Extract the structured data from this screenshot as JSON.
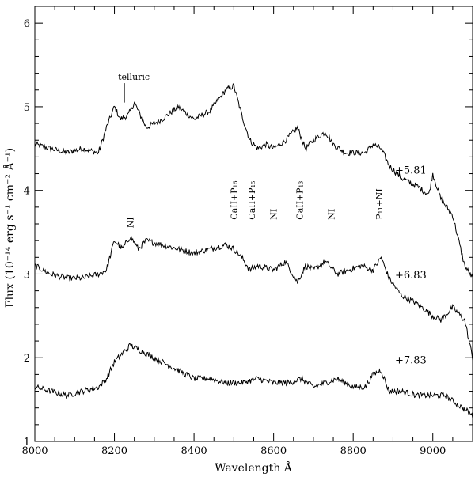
{
  "chart_data": {
    "type": "line",
    "xlabel": "Wavelength Å",
    "ylabel": "Flux (10⁻¹⁴ erg s⁻¹ cm⁻² Å⁻¹)",
    "xlim": [
      8000,
      9100
    ],
    "ylim": [
      1,
      6.2
    ],
    "x_ticks": [
      8000,
      8200,
      8400,
      8600,
      8800,
      9000
    ],
    "y_ticks": [
      1,
      2,
      3,
      4,
      5,
      6
    ],
    "series": [
      {
        "name": "+5.81",
        "label_at": [
          8905,
          4.2
        ],
        "x": [
          8000,
          8040,
          8080,
          8120,
          8160,
          8180,
          8200,
          8215,
          8235,
          8250,
          8280,
          8320,
          8360,
          8400,
          8440,
          8480,
          8500,
          8520,
          8540,
          8560,
          8580,
          8600,
          8630,
          8660,
          8680,
          8700,
          8730,
          8750,
          8780,
          8800,
          8830,
          8850,
          8870,
          8890,
          8920,
          8960,
          8990,
          9000,
          9020,
          9050,
          9080,
          9100
        ],
        "y": [
          4.55,
          4.5,
          4.45,
          4.5,
          4.45,
          4.75,
          5.0,
          4.85,
          4.9,
          5.05,
          4.75,
          4.85,
          5.0,
          4.85,
          4.95,
          5.2,
          5.25,
          4.9,
          4.6,
          4.5,
          4.55,
          4.5,
          4.6,
          4.75,
          4.5,
          4.6,
          4.7,
          4.55,
          4.45,
          4.45,
          4.45,
          4.55,
          4.5,
          4.3,
          4.15,
          4.05,
          3.95,
          4.2,
          3.9,
          3.7,
          3.1,
          2.95
        ]
      },
      {
        "name": "+6.83",
        "label_at": [
          8905,
          2.95
        ],
        "x": [
          8000,
          8040,
          8080,
          8120,
          8160,
          8180,
          8200,
          8220,
          8240,
          8260,
          8280,
          8320,
          8360,
          8400,
          8440,
          8480,
          8500,
          8520,
          8540,
          8560,
          8600,
          8630,
          8660,
          8680,
          8700,
          8730,
          8760,
          8790,
          8820,
          8850,
          8870,
          8890,
          8920,
          8960,
          9000,
          9020,
          9050,
          9080,
          9100
        ],
        "y": [
          3.1,
          3.0,
          2.95,
          2.95,
          3.0,
          3.05,
          3.4,
          3.3,
          3.45,
          3.3,
          3.4,
          3.35,
          3.3,
          3.25,
          3.3,
          3.35,
          3.3,
          3.2,
          3.05,
          3.1,
          3.05,
          3.15,
          2.9,
          3.1,
          3.05,
          3.15,
          3.0,
          3.05,
          3.1,
          3.05,
          3.2,
          2.95,
          2.75,
          2.65,
          2.5,
          2.45,
          2.6,
          2.45,
          2.0
        ]
      },
      {
        "name": "+7.83",
        "label_at": [
          8905,
          1.93
        ],
        "x": [
          8000,
          8040,
          8080,
          8120,
          8160,
          8180,
          8200,
          8220,
          8240,
          8260,
          8280,
          8320,
          8360,
          8400,
          8440,
          8480,
          8520,
          8560,
          8600,
          8640,
          8670,
          8700,
          8730,
          8760,
          8800,
          8830,
          8850,
          8870,
          8890,
          8920,
          8960,
          9000,
          9030,
          9060,
          9090,
          9100
        ],
        "y": [
          1.65,
          1.6,
          1.55,
          1.6,
          1.65,
          1.75,
          1.95,
          2.05,
          2.15,
          2.1,
          2.05,
          1.95,
          1.85,
          1.75,
          1.75,
          1.7,
          1.7,
          1.75,
          1.7,
          1.7,
          1.75,
          1.65,
          1.7,
          1.75,
          1.65,
          1.65,
          1.8,
          1.85,
          1.6,
          1.6,
          1.55,
          1.55,
          1.55,
          1.45,
          1.35,
          1.3
        ]
      }
    ],
    "annotations": [
      {
        "text": "telluric",
        "x": 8225,
        "y": 5.32,
        "line_to": [
          8225,
          5.05
        ]
      },
      {
        "text": "NI",
        "x": 8240,
        "y": 3.55,
        "vertical": true
      },
      {
        "text": "CaII+P₁₆",
        "x": 8500,
        "y": 3.65,
        "vertical": true
      },
      {
        "text": "CaII+P₁₅",
        "x": 8545,
        "y": 3.65,
        "vertical": true
      },
      {
        "text": "NI",
        "x": 8600,
        "y": 3.65,
        "vertical": true
      },
      {
        "text": "CaII+P₁₃",
        "x": 8665,
        "y": 3.65,
        "vertical": true
      },
      {
        "text": "NI",
        "x": 8745,
        "y": 3.65,
        "vertical": true
      },
      {
        "text": "P₁₁+NI",
        "x": 8865,
        "y": 3.65,
        "vertical": true
      }
    ],
    "grid": false,
    "legend": "none"
  }
}
